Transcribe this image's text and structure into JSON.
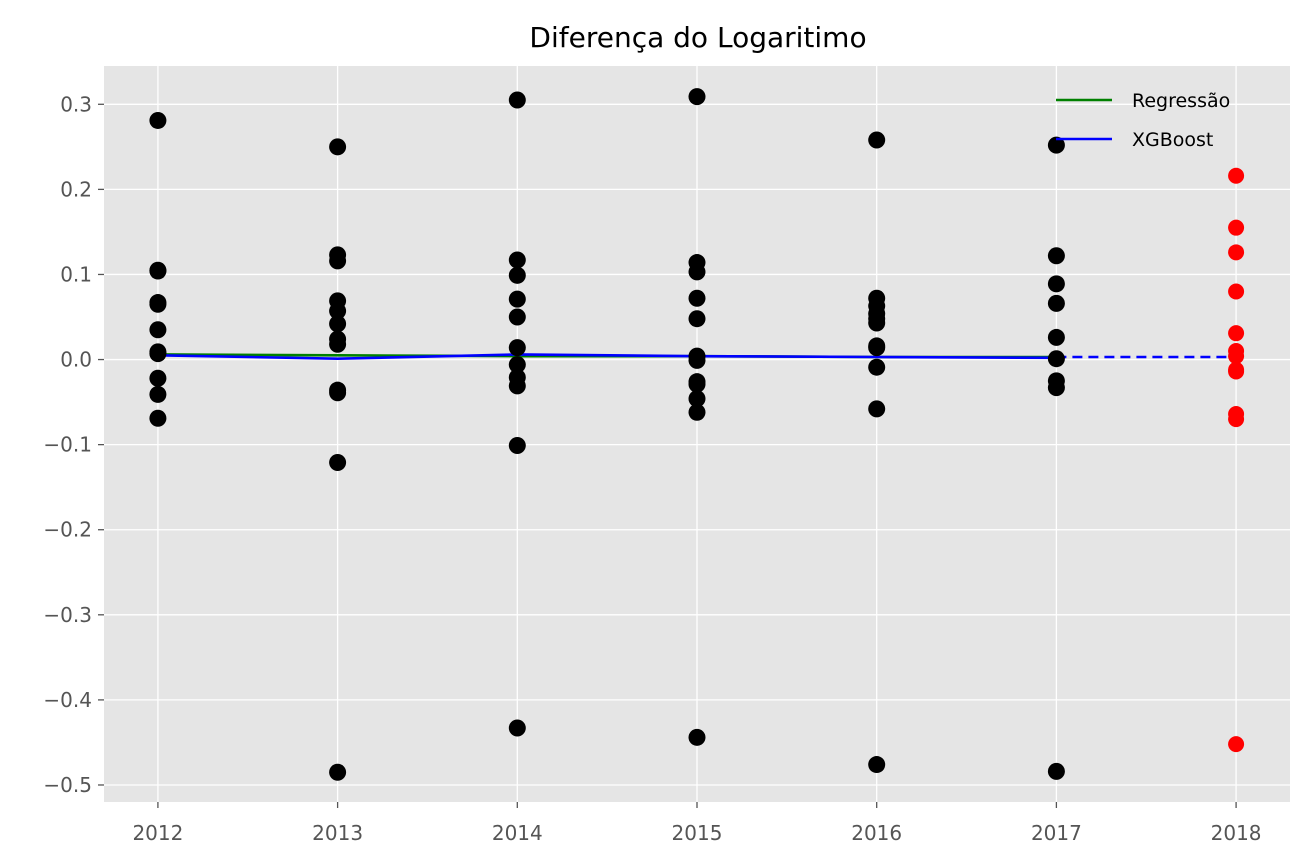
{
  "chart_data": {
    "type": "scatter",
    "title": "Diferença do Logaritimo",
    "xlabel": "",
    "ylabel": "",
    "x_ticks": [
      "2012",
      "2013",
      "2014",
      "2015",
      "2016",
      "2017",
      "2018"
    ],
    "xlim": [
      2011.7,
      2018.3
    ],
    "ylim": [
      -0.52,
      0.345
    ],
    "y_ticks": [
      0.3,
      0.2,
      0.1,
      0.0,
      -0.1,
      -0.2,
      -0.3,
      -0.4,
      -0.5
    ],
    "y_tick_labels": [
      "0.3",
      "0.2",
      "0.1",
      "0.0",
      "−0.1",
      "−0.2",
      "−0.3",
      "−0.4",
      "−0.5"
    ],
    "grid": true,
    "legend_position": "top-right",
    "colors": {
      "background": "#e5e5e5",
      "grid": "#ffffff",
      "observed": "#000000",
      "forecast": "#ff0000",
      "regressao": "#008000",
      "xgboost": "#0000ff"
    },
    "scatter_observed": [
      {
        "x": 2012,
        "ys": [
          0.281,
          0.105,
          0.104,
          0.067,
          0.065,
          0.035,
          0.009,
          0.007,
          -0.022,
          -0.041,
          -0.069
        ]
      },
      {
        "x": 2013,
        "ys": [
          0.25,
          0.123,
          0.116,
          0.069,
          0.057,
          0.042,
          0.024,
          0.018,
          -0.036,
          -0.039,
          -0.121,
          -0.485
        ]
      },
      {
        "x": 2014,
        "ys": [
          0.305,
          0.117,
          0.099,
          0.071,
          0.05,
          0.014,
          -0.006,
          -0.021,
          -0.031,
          -0.101,
          -0.433
        ]
      },
      {
        "x": 2015,
        "ys": [
          0.309,
          0.114,
          0.103,
          0.072,
          0.048,
          0.004,
          -0.001,
          -0.026,
          -0.029,
          -0.046,
          -0.062,
          -0.444
        ]
      },
      {
        "x": 2016,
        "ys": [
          0.258,
          0.072,
          0.063,
          0.054,
          0.048,
          0.043,
          0.016,
          0.014,
          -0.009,
          -0.058,
          -0.476
        ]
      },
      {
        "x": 2017,
        "ys": [
          0.252,
          0.122,
          0.089,
          0.066,
          0.026,
          0.001,
          -0.025,
          -0.033,
          -0.484
        ]
      }
    ],
    "scatter_forecast": [
      {
        "x": 2018,
        "ys": [
          0.216,
          0.155,
          0.126,
          0.08,
          0.031,
          0.01,
          0.004,
          -0.012,
          -0.014,
          -0.064,
          -0.07,
          -0.452
        ]
      }
    ],
    "series": [
      {
        "name": "Regressão",
        "x": [
          2012,
          2013,
          2014,
          2015,
          2016,
          2017
        ],
        "values": [
          0.006,
          0.005,
          0.004,
          0.004,
          0.003,
          0.003
        ]
      },
      {
        "name": "XGBoost",
        "x": [
          2012,
          2013,
          2014,
          2015,
          2016,
          2017
        ],
        "values": [
          0.005,
          0.001,
          0.006,
          0.004,
          0.003,
          0.002
        ],
        "forecast": {
          "x": [
            2017,
            2018
          ],
          "values": [
            0.003,
            0.003
          ],
          "style": "dashed"
        }
      }
    ]
  }
}
